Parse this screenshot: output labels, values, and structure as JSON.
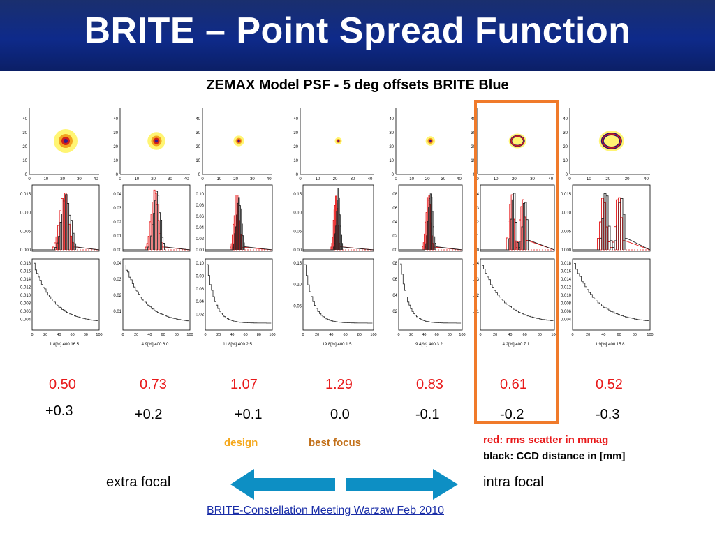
{
  "header": {
    "title": "BRITE – Point Spread Function"
  },
  "subtitle": "ZEMAX Model PSF - 5 deg offsets BRITE Blue",
  "chart_data": {
    "type": "psf_panel_grid",
    "columns": [
      {
        "rms": "0.50",
        "ccd": "+0.3",
        "stats": "1.8[%]  400     16.5",
        "spot": "blob",
        "spot_size": 1.0,
        "hist_yticks": [
          "0.015",
          "0.010",
          "0.005",
          "0.000"
        ],
        "cum_yticks": [
          "0.018",
          "0.016",
          "0.014",
          "0.012",
          "0.010",
          "0.008",
          "0.006",
          "0.004"
        ]
      },
      {
        "rms": "0.73",
        "ccd": "+0.2",
        "stats": "4.9[%]  400     6.0",
        "spot": "blob",
        "spot_size": 0.75,
        "hist_yticks": [
          "0.04",
          "0.03",
          "0.02",
          "0.01",
          "0.00"
        ],
        "cum_yticks": [
          "0.04",
          "0.03",
          "0.02",
          "0.01"
        ]
      },
      {
        "rms": "1.07",
        "ccd": "+0.1",
        "stats": "11.8[%]  400     2.5",
        "spot": "blob",
        "spot_size": 0.45,
        "hist_yticks": [
          "0.10",
          "0.08",
          "0.06",
          "0.04",
          "0.02",
          "0.00"
        ],
        "cum_yticks": [
          "0.10",
          "0.08",
          "0.06",
          "0.04",
          "0.02"
        ]
      },
      {
        "rms": "1.29",
        "ccd": "0.0",
        "stats": "19.8[%]  400     1.5",
        "spot": "blob",
        "spot_size": 0.3,
        "hist_yticks": [
          "0.15",
          "0.10",
          "0.05",
          "0.00"
        ],
        "cum_yticks": [
          "0.15",
          "0.10",
          "0.05"
        ]
      },
      {
        "rms": "0.83",
        "ccd": "-0.1",
        "stats": "9.4[%]  400     3.2",
        "spot": "blob",
        "spot_size": 0.4,
        "hist_yticks": [
          "08",
          "06",
          "04",
          "02",
          "00"
        ],
        "cum_yticks": [
          "08",
          "06",
          "04",
          "02"
        ]
      },
      {
        "rms": "0.61",
        "ccd": "-0.2",
        "stats": "4.2[%]  400     7.1",
        "spot": "ring",
        "spot_size": 0.7,
        "hist_yticks": [
          ".04",
          ".03",
          ".02",
          ".01",
          ".00"
        ],
        "cum_yticks": [
          ".04",
          ".03",
          ".02",
          ".01"
        ]
      },
      {
        "rms": "0.52",
        "ccd": "-0.3",
        "stats": "1.9[%]  400     15.8",
        "spot": "ring",
        "spot_size": 1.0,
        "hist_yticks": [
          "0.015",
          "0.010",
          "0.005",
          "0.000"
        ],
        "cum_yticks": [
          "0.018",
          "0.016",
          "0.014",
          "0.012",
          "0.010",
          "0.008",
          "0.006",
          "0.004"
        ]
      }
    ],
    "image_yticks": [
      "40",
      "30",
      "20",
      "10",
      "0"
    ],
    "image_xticks": [
      "0",
      "10",
      "20",
      "30",
      "40"
    ],
    "cum_xticks": [
      "0",
      "20",
      "40",
      "60",
      "80",
      "100"
    ],
    "highlighted_column": 5,
    "colors": {
      "rms": "#e8191a",
      "highlight": "#f07a2a",
      "arrow": "#0d8fc4"
    }
  },
  "labels": {
    "design": "design",
    "best_focus": "best focus",
    "legend_red": "red: rms scatter in mmag",
    "legend_black": "black: CCD distance in [mm]",
    "extra_focal": "extra focal",
    "intra_focal": "intra focal"
  },
  "footer": "BRITE-Constellation Meeting Warzaw Feb 2010"
}
